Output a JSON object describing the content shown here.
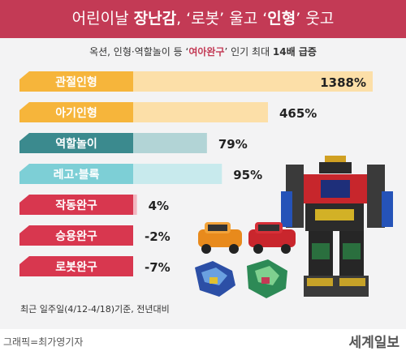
{
  "header": {
    "title_pre": "어린이날 ",
    "title_b1": "장난감",
    "title_mid1": ", ‘로봇’ 울고 ‘",
    "title_b2": "인형",
    "title_mid2": "’ 웃고"
  },
  "subtitle": {
    "pre": "옥션, 인형·역할놀이 등 ‘",
    "em": "여아완구",
    "mid": "’ 인기 최대 ",
    "bold": "14배 급증"
  },
  "colors": {
    "title_bg": "#c33a55",
    "orange": "#f6b53b",
    "orange_light": "#fcdfa8",
    "teal": "#3b8a8e",
    "teal_light": "#b2d4d6",
    "cyan": "#7dcfd6",
    "cyan_light": "#c8eaed",
    "red": "#d8374f",
    "red_light": "#f2b6c0"
  },
  "chart_data": {
    "type": "bar",
    "orientation": "horizontal",
    "categories": [
      "관절인형",
      "아기인형",
      "역할놀이",
      "레고·블록",
      "작동완구",
      "승용완구",
      "로봇완구"
    ],
    "values": [
      1388,
      465,
      79,
      95,
      4,
      -2,
      -7
    ],
    "value_labels": [
      "1388%",
      "465%",
      "79%",
      "95%",
      "4%",
      "-2%",
      "-7%"
    ],
    "unit": "%",
    "note": "최근 일주일(4/12-4/18)기준, 전년대비"
  },
  "footer": {
    "note": "최근 일주일(4/12-4/18)기준, 전년대비",
    "credit": "그래픽=최가영기자",
    "brand": "세계일보"
  }
}
